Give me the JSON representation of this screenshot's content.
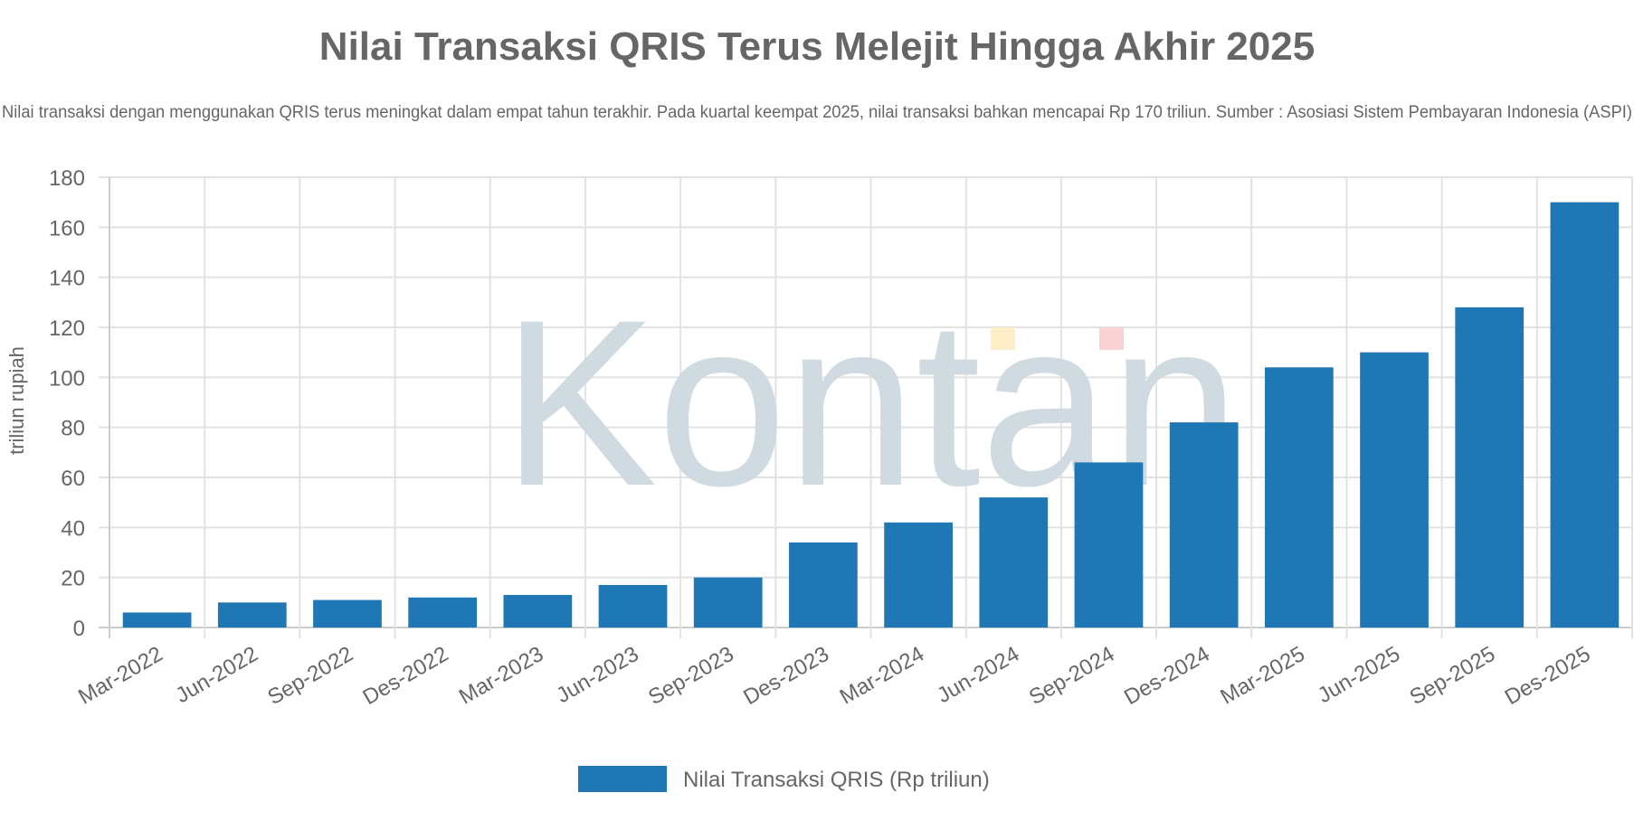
{
  "chart_data": {
    "type": "bar",
    "title": "Nilai Transaksi QRIS Terus Melejit Hingga Akhir 2025",
    "subtitle": "Nilai transaksi dengan menggunakan QRIS terus meningkat dalam empat tahun terakhir. Pada kuartal keempat 2025, nilai transaksi bahkan mencapai Rp 170 triliun. Sumber : Asosiasi Sistem Pembayaran Indonesia (ASPI)",
    "xlabel": "",
    "ylabel": "triliun rupiah",
    "ylim": [
      0,
      180
    ],
    "yticks": [
      "0",
      "20",
      "40",
      "60",
      "80",
      "100",
      "120",
      "140",
      "160",
      "180"
    ],
    "grid": true,
    "legend_position": "bottom",
    "categories": [
      "Mar-2022",
      "Jun-2022",
      "Sep-2022",
      "Des-2022",
      "Mar-2023",
      "Jun-2023",
      "Sep-2023",
      "Des-2023",
      "Mar-2024",
      "Jun-2024",
      "Sep-2024",
      "Des-2024",
      "Mar-2025",
      "Jun-2025",
      "Sep-2025",
      "Des-2025"
    ],
    "series": [
      {
        "name": "Nilai Transaksi QRIS (Rp triliun)",
        "color": "#1f77b4",
        "values": [
          6,
          10,
          11,
          12,
          13,
          17,
          20,
          34,
          42,
          52,
          66,
          82,
          104,
          110,
          128,
          170
        ]
      }
    ]
  },
  "watermark": {
    "text": "Kontan",
    "color": "#cdd8df",
    "accent_colors": [
      "#fdeec8",
      "#f9d3d3"
    ]
  }
}
